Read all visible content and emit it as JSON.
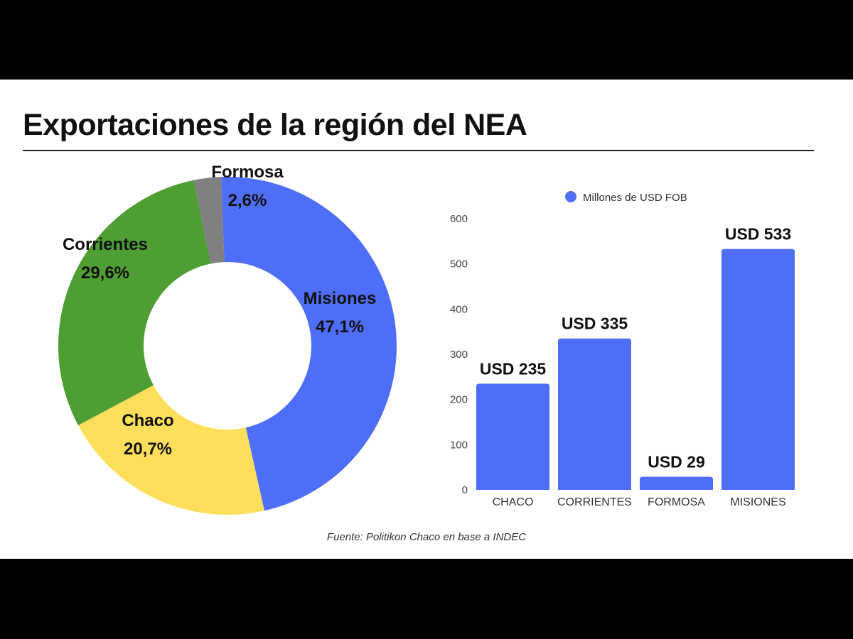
{
  "chart_data": [
    {
      "type": "pie",
      "variant": "donut",
      "title": "Exportaciones de la región del NEA",
      "slices": [
        {
          "label": "Misiones",
          "value": 47.1,
          "display": "47,1%",
          "color": "#4f6ef7"
        },
        {
          "label": "Chaco",
          "value": 20.7,
          "display": "20,7%",
          "color": "#fddf5b"
        },
        {
          "label": "Corrientes",
          "value": 29.6,
          "display": "29,6%",
          "color": "#4f9e34"
        },
        {
          "label": "Formosa",
          "value": 2.6,
          "display": "2,6%",
          "color": "#808080"
        }
      ]
    },
    {
      "type": "bar",
      "legend": "Millones de USD FOB",
      "legend_position": "top",
      "categories": [
        "CHACO",
        "CORRIENTES",
        "FORMOSA",
        "MISIONES"
      ],
      "values": [
        235,
        335,
        29,
        533
      ],
      "data_labels": [
        "USD 235",
        "USD 335",
        "USD 29",
        "USD 533"
      ],
      "yticks": [
        "0",
        "100",
        "200",
        "300",
        "400",
        "500",
        "600"
      ],
      "ylim": [
        0,
        600
      ],
      "grid": false,
      "color": "#4f6ef7"
    }
  ],
  "title": "Exportaciones de la región del NEA",
  "source": "Fuente: Politikon Chaco en base a INDEC"
}
